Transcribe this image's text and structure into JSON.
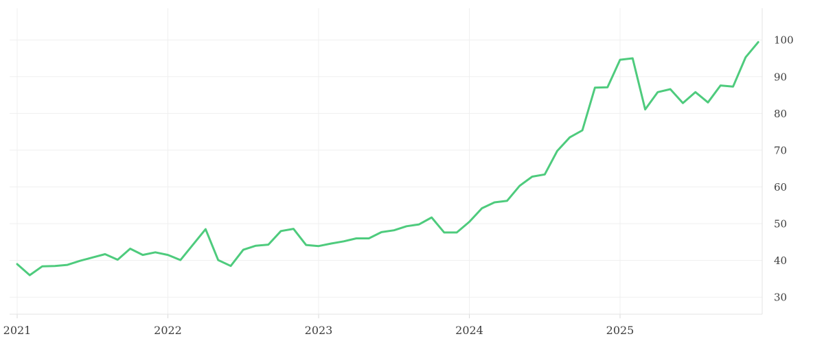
{
  "chart_data": {
    "type": "line",
    "title": "",
    "x": [
      "2021-01",
      "2021-02",
      "2021-03",
      "2021-04",
      "2021-05",
      "2021-06",
      "2021-07",
      "2021-08",
      "2021-09",
      "2021-10",
      "2021-11",
      "2021-12",
      "2022-01",
      "2022-02",
      "2022-03",
      "2022-04",
      "2022-05",
      "2022-06",
      "2022-07",
      "2022-08",
      "2022-09",
      "2022-10",
      "2022-11",
      "2022-12",
      "2023-01",
      "2023-02",
      "2023-03",
      "2023-04",
      "2023-05",
      "2023-06",
      "2023-07",
      "2023-08",
      "2023-09",
      "2023-10",
      "2023-11",
      "2023-12",
      "2024-01",
      "2024-02",
      "2024-03",
      "2024-04",
      "2024-05",
      "2024-06",
      "2024-07",
      "2024-08",
      "2024-09",
      "2024-10",
      "2024-11",
      "2024-12",
      "2025-01",
      "2025-02",
      "2025-03",
      "2025-04",
      "2025-05",
      "2025-06",
      "2025-07",
      "2025-08",
      "2025-09",
      "2025-10",
      "2025-11",
      "2025-12"
    ],
    "values": [
      39.0,
      36.0,
      38.4,
      38.5,
      38.8,
      39.9,
      40.8,
      41.7,
      40.2,
      43.2,
      41.5,
      42.2,
      41.5,
      40.1,
      44.3,
      48.5,
      40.1,
      38.5,
      42.9,
      44.0,
      44.3,
      48.0,
      48.6,
      44.2,
      43.9,
      44.6,
      45.2,
      46.0,
      46.0,
      47.7,
      48.2,
      49.3,
      49.8,
      51.7,
      47.6,
      47.6,
      50.5,
      54.2,
      55.8,
      56.2,
      60.3,
      62.8,
      63.4,
      69.8,
      73.5,
      75.4,
      87.0,
      87.1,
      94.6,
      95.0,
      81.1,
      85.8,
      86.6,
      82.8,
      85.8,
      83.0,
      87.6,
      87.3,
      95.3,
      99.4
    ],
    "x_tick_labels": [
      "2021",
      "2022",
      "2023",
      "2024",
      "2025"
    ],
    "y_ticks": [
      30,
      40,
      50,
      60,
      70,
      80,
      90,
      100
    ],
    "y_tick_labels": [
      "30",
      "40",
      "50",
      "60",
      "70",
      "80",
      "90",
      "100"
    ],
    "ylim": [
      25.3,
      108.6
    ],
    "y_axis_side": "right",
    "grid": true,
    "legend": null,
    "line_color": "#4ecb7d",
    "grid_color": "#efefef",
    "axis_color": "#e3e3e3",
    "tick_color": "#d9d9d9",
    "label_color": "#3d3d3d",
    "background_color": "#ffffff"
  }
}
